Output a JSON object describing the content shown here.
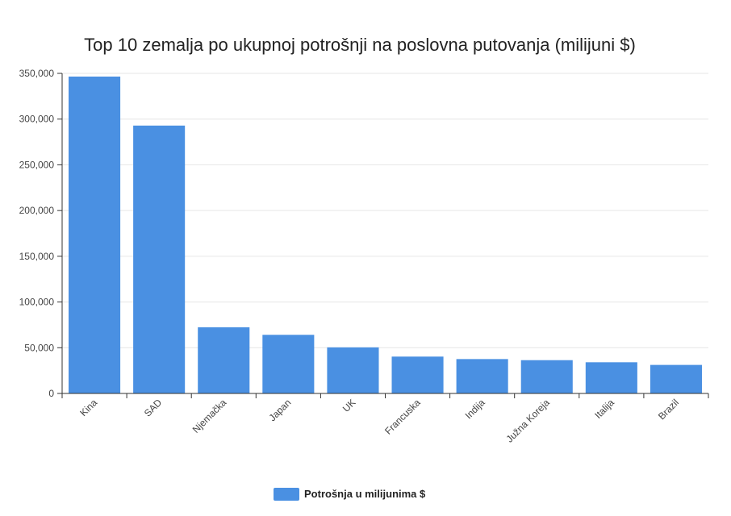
{
  "chart_data": {
    "type": "bar",
    "title": "Top 10 zemalja po ukupnoj potrošnji na poslovna putovanja (milijuni $)",
    "categories": [
      "Kina",
      "SAD",
      "Njemačka",
      "Japan",
      "UK",
      "Francuska",
      "Indija",
      "Južna Koreja",
      "Italija",
      "Brazil"
    ],
    "series": [
      {
        "name": "Potrošnja u milijunima $",
        "values": [
          346500,
          292900,
          72400,
          64100,
          50400,
          40300,
          37600,
          36400,
          34100,
          31200
        ]
      }
    ],
    "xlabel": "",
    "ylabel": "",
    "ylim": [
      0,
      350000
    ],
    "yticks": [
      0,
      50000,
      100000,
      150000,
      200000,
      250000,
      300000,
      350000
    ],
    "ytick_labels": [
      "0",
      "50,000",
      "100,000",
      "150,000",
      "200,000",
      "250,000",
      "300,000",
      "350,000"
    ],
    "grid": true,
    "legend_position": "bottom",
    "colors": {
      "bar": "#4A90E2",
      "grid": "#e6e6e6",
      "axis": "#333333"
    }
  }
}
